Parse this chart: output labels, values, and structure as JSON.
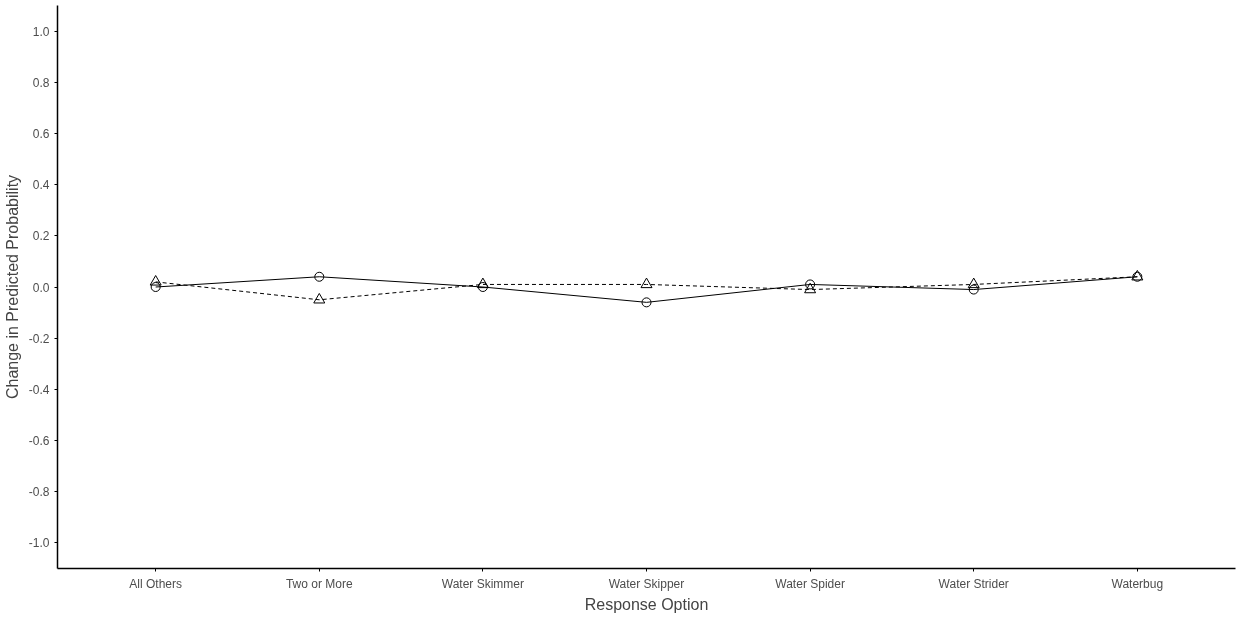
{
  "chart_data": {
    "type": "line",
    "xlabel": "Response Option",
    "ylabel": "Change in Predicted Probability",
    "categories": [
      "All Others",
      "Two or More",
      "Water Skimmer",
      "Water Skipper",
      "Water Spider",
      "Water Strider",
      "Waterbug"
    ],
    "series": [
      {
        "color": "#000000",
        "marker": "circle",
        "line_style": "solid",
        "values": [
          0.0,
          0.04,
          0.0,
          -0.06,
          0.01,
          -0.01,
          0.04
        ]
      },
      {
        "color": "#000000",
        "marker": "triangle",
        "line_style": "dashed",
        "values": [
          0.02,
          -0.05,
          0.01,
          0.01,
          -0.01,
          0.01,
          0.04
        ]
      }
    ],
    "ylim": [
      -1.1,
      1.1
    ],
    "yticks": [
      {
        "value": -1,
        "label": "-1.0"
      },
      {
        "value": -0.8,
        "label": "-0.8"
      },
      {
        "value": -0.6,
        "label": "-0.6"
      },
      {
        "value": -0.4,
        "label": "-0.4"
      },
      {
        "value": -0.2,
        "label": "-0.2"
      },
      {
        "value": 0,
        "label": "0.0"
      },
      {
        "value": 0.2,
        "label": "0.2"
      },
      {
        "value": 0.4,
        "label": "0.4"
      },
      {
        "value": 0.6,
        "label": "0.6"
      },
      {
        "value": 0.8,
        "label": "0.8"
      },
      {
        "value": 1,
        "label": "1.0"
      }
    ],
    "grid": false
  }
}
